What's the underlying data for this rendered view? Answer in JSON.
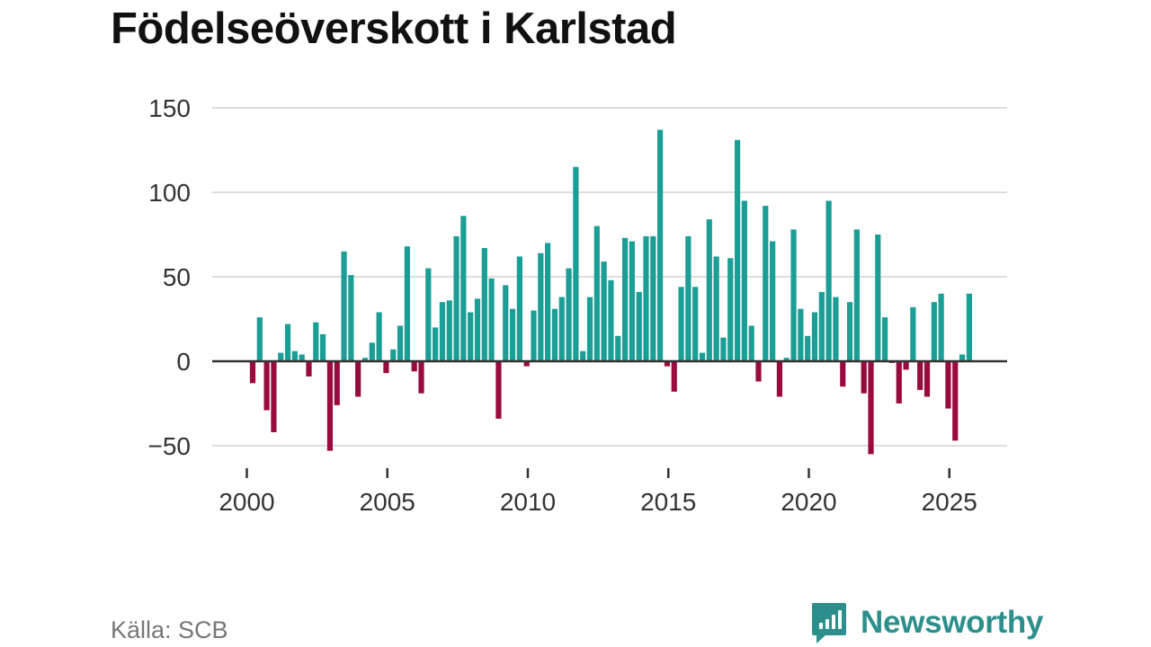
{
  "title": "Födelseöverskott i Karlstad",
  "source": "Källa: SCB",
  "brand": "Newsworthy",
  "colors": {
    "positive": "#1a9e96",
    "negative": "#990a3e",
    "grid": "#dddddd",
    "zero_line": "#333333",
    "tick_text": "#333333",
    "brand": "#2d8f8b"
  },
  "chart_data": {
    "type": "bar",
    "title": "Födelseöverskott i Karlstad",
    "xlabel": "",
    "ylabel": "",
    "ylim": [
      -60,
      150
    ],
    "y_ticks": [
      -50,
      0,
      50,
      100,
      150
    ],
    "y_tick_labels": [
      "−50",
      "0",
      "50",
      "100",
      "150"
    ],
    "x_ticks": [
      2000,
      2005,
      2010,
      2015,
      2020,
      2025
    ],
    "x_tick_labels": [
      "2000",
      "2005",
      "2010",
      "2015",
      "2020",
      "2025"
    ],
    "x_start": 2000.0,
    "period_step": 0.25,
    "grid": true,
    "legend": false,
    "values": [
      -13,
      26,
      -29,
      -42,
      5,
      22,
      6,
      4,
      -9,
      23,
      16,
      -53,
      -26,
      65,
      51,
      -21,
      2,
      11,
      29,
      -7,
      7,
      21,
      68,
      -6,
      -19,
      55,
      20,
      35,
      36,
      74,
      86,
      29,
      37,
      67,
      49,
      -34,
      45,
      31,
      62,
      -3,
      30,
      64,
      70,
      31,
      38,
      55,
      115,
      6,
      38,
      80,
      59,
      48,
      15,
      73,
      71,
      41,
      74,
      74,
      137,
      -3,
      -18,
      44,
      74,
      44,
      5,
      84,
      62,
      14,
      61,
      131,
      95,
      21,
      -12,
      92,
      71,
      -21,
      2,
      78,
      31,
      15,
      29,
      41,
      95,
      38,
      -15,
      35,
      78,
      -19,
      -55,
      75,
      26,
      -1,
      -25,
      -5,
      32,
      -17,
      -21,
      35,
      40,
      -28,
      -47,
      4,
      40
    ]
  }
}
